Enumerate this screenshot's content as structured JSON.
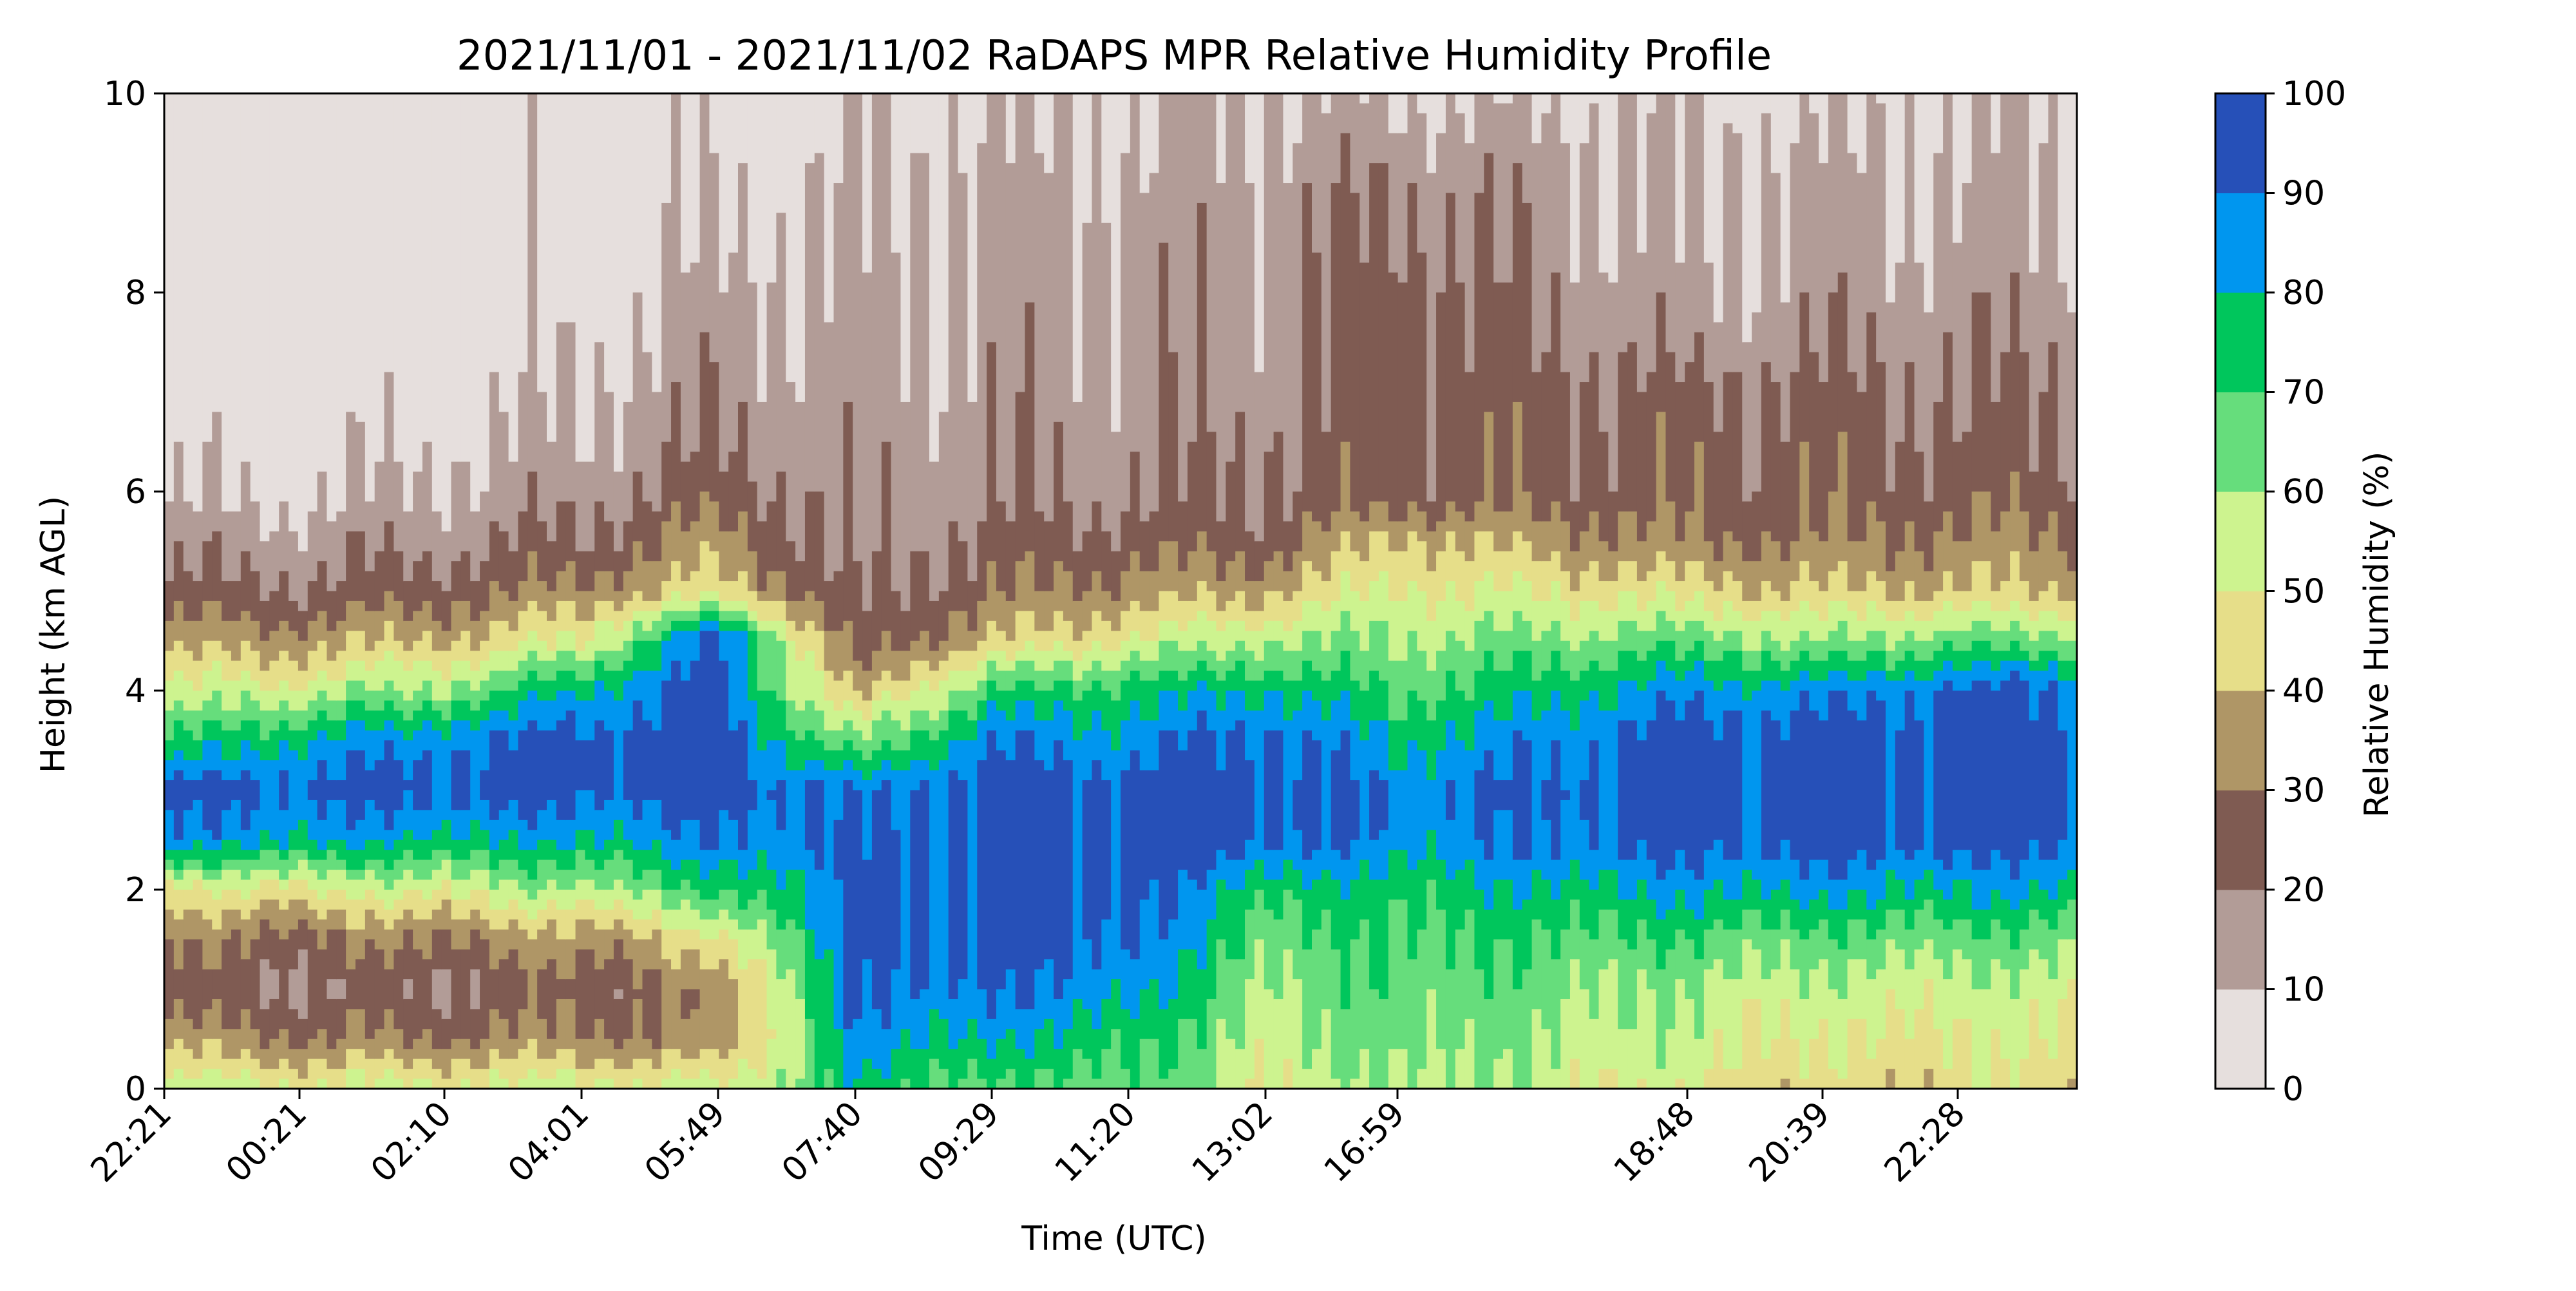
{
  "chart_data": {
    "type": "heatmap",
    "subtype": "filled-contour",
    "title": "2021/11/01 - 2021/11/02 RaDAPS MPR Relative Humidity Profile",
    "xlabel": "Time (UTC)",
    "ylabel": "Height (km AGL)",
    "ylim": [
      0,
      10
    ],
    "x_tick_labels": [
      "22:21",
      "00:21",
      "02:10",
      "04:01",
      "05:49",
      "07:40",
      "09:29",
      "11:20",
      "13:02",
      "16:59",
      "18:48",
      "20:39",
      "22:28"
    ],
    "y_ticks": [
      0,
      2,
      4,
      6,
      8,
      10
    ],
    "y_tick_labels": [
      "0",
      "2",
      "4",
      "6",
      "8",
      "10"
    ],
    "colorbar": {
      "label": "Relative Humidity (%)",
      "levels": [
        0,
        10,
        20,
        30,
        40,
        50,
        60,
        70,
        80,
        90,
        100
      ],
      "tick_labels": [
        "0",
        "10",
        "20",
        "30",
        "40",
        "50",
        "60",
        "70",
        "80",
        "90",
        "100"
      ],
      "colors": [
        "#e6dfdd",
        "#b29c97",
        "#7f5b52",
        "#af9666",
        "#e6de89",
        "#cdf38f",
        "#66dd7c",
        "#00c65c",
        "#0096ef",
        "#2650b8"
      ]
    },
    "profile_heights_km": [
      0,
      0.5,
      1,
      1.5,
      2,
      2.5,
      3,
      3.5,
      4,
      4.5,
      5,
      5.5,
      6,
      6.5,
      7,
      7.5,
      8,
      8.5,
      9,
      9.5,
      10
    ],
    "profiles": [
      {
        "time": "22:21",
        "rh": [
          55,
          35,
          22,
          30,
          45,
          85,
          93,
          70,
          52,
          35,
          22,
          15,
          8,
          5,
          3,
          3,
          3,
          3,
          3,
          3,
          3
        ]
      },
      {
        "time": "00:21",
        "rh": [
          52,
          30,
          20,
          28,
          50,
          82,
          94,
          80,
          55,
          35,
          22,
          15,
          8,
          5,
          3,
          3,
          3,
          3,
          3,
          3,
          3
        ]
      },
      {
        "time": "02:10",
        "rh": [
          52,
          30,
          21,
          32,
          52,
          80,
          95,
          88,
          62,
          40,
          26,
          17,
          12,
          8,
          5,
          3,
          3,
          3,
          3,
          3,
          3
        ]
      },
      {
        "time": "04:01",
        "rh": [
          55,
          32,
          25,
          35,
          58,
          80,
          95,
          95,
          80,
          50,
          32,
          22,
          16,
          12,
          10,
          8,
          5,
          5,
          5,
          5,
          5
        ]
      },
      {
        "time": "05:49",
        "rh": [
          52,
          30,
          30,
          45,
          70,
          88,
          95,
          95,
          95,
          95,
          45,
          35,
          25,
          20,
          17,
          15,
          12,
          10,
          8,
          5,
          5
        ]
      },
      {
        "time": "07:40",
        "rh": [
          75,
          85,
          90,
          92,
          92,
          90,
          88,
          60,
          35,
          22,
          18,
          15,
          15,
          14,
          13,
          12,
          12,
          10,
          10,
          8,
          8
        ]
      },
      {
        "time": "09:29",
        "rh": [
          65,
          80,
          90,
          95,
          95,
          95,
          95,
          88,
          70,
          40,
          28,
          22,
          18,
          17,
          15,
          15,
          13,
          12,
          12,
          10,
          10
        ]
      },
      {
        "time": "11:20",
        "rh": [
          68,
          75,
          85,
          92,
          95,
          95,
          95,
          85,
          75,
          50,
          35,
          25,
          18,
          17,
          15,
          15,
          15,
          15,
          12,
          10,
          10
        ]
      },
      {
        "time": "13:02",
        "rh": [
          52,
          55,
          60,
          65,
          75,
          95,
          95,
          95,
          80,
          60,
          38,
          25,
          22,
          20,
          17,
          15,
          15,
          15,
          15,
          12,
          12
        ]
      },
      {
        "time": "16:59",
        "rh": [
          60,
          65,
          68,
          70,
          75,
          85,
          88,
          78,
          68,
          60,
          52,
          42,
          25,
          25,
          25,
          25,
          25,
          22,
          20,
          15,
          10
        ]
      },
      {
        "time": "18:48",
        "rh": [
          50,
          55,
          58,
          68,
          82,
          95,
          95,
          95,
          85,
          65,
          45,
          30,
          25,
          25,
          22,
          15,
          12,
          10,
          10,
          10,
          8
        ]
      },
      {
        "time": "20:39",
        "rh": [
          42,
          48,
          55,
          65,
          82,
          95,
          95,
          95,
          85,
          60,
          40,
          30,
          25,
          25,
          22,
          18,
          15,
          12,
          12,
          10,
          8
        ]
      },
      {
        "time": "22:28",
        "rh": [
          45,
          50,
          55,
          65,
          80,
          95,
          95,
          95,
          92,
          65,
          40,
          32,
          25,
          22,
          20,
          18,
          15,
          12,
          12,
          10,
          10
        ]
      }
    ]
  }
}
